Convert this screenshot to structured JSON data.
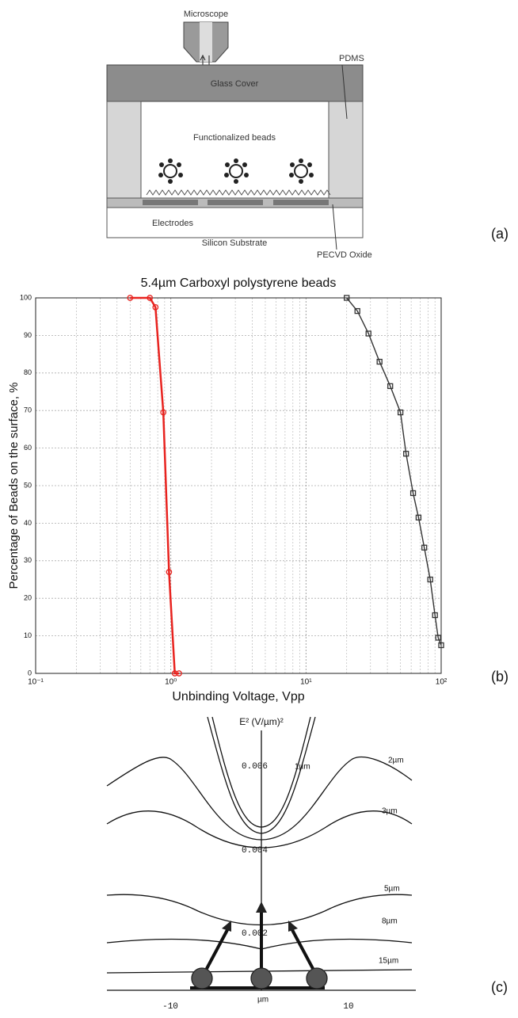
{
  "diagram": {
    "microscope": "Microscope",
    "pdms": "PDMS",
    "glass_cover": "Glass Cover",
    "beads": "Functionalized beads",
    "electrodes": "Electrodes",
    "substrate": "Silicon Substrate",
    "oxide": "PECVD Oxide",
    "panel_label": "(a)"
  },
  "chart_data": {
    "type": "line",
    "panel_label": "(b)",
    "title": "5.4µm Carboxyl polystyrene beads",
    "x_label": "Unbinding Voltage, Vpp",
    "y_label": "Percentage of Beads on the surface, %",
    "xscale": "log",
    "grid": true,
    "xlim": [
      0.1,
      100
    ],
    "ylim": [
      0,
      100
    ],
    "xticks": [
      {
        "value": 0.1,
        "label": "10⁻¹"
      },
      {
        "value": 1,
        "label": "10⁰"
      },
      {
        "value": 10,
        "label": "10¹"
      },
      {
        "value": 100,
        "label": "10²"
      }
    ],
    "yticks": [
      0,
      10,
      20,
      30,
      40,
      50,
      60,
      70,
      80,
      90,
      100
    ],
    "series": [
      {
        "color": "#e8231f",
        "marker": "circle",
        "x": [
          0.5,
          0.7,
          0.77,
          0.88,
          0.97,
          1.07,
          1.15
        ],
        "values": [
          100,
          100,
          97.5,
          69.5,
          27,
          0,
          0
        ]
      },
      {
        "color": "#333333",
        "marker": "square",
        "x": [
          20,
          24,
          29,
          35,
          42,
          50,
          55,
          62,
          68,
          75,
          83,
          90,
          95,
          100
        ],
        "values": [
          100,
          96.5,
          90.5,
          83,
          76.5,
          69.5,
          58.5,
          48,
          41.5,
          33.5,
          25,
          15.5,
          9.5,
          7.5
        ]
      }
    ]
  },
  "field_plot": {
    "y_label": "E² (V/µm)²",
    "y_tick_labels": [
      "0.006",
      "0.004",
      "0.002"
    ],
    "x_tick_labels": [
      "-10",
      "10"
    ],
    "x_unit": "µm",
    "curve_labels": [
      "1µm",
      "2µm",
      "3µm",
      "5µm",
      "8µm",
      "15µm"
    ],
    "panel_label": "(c)"
  }
}
